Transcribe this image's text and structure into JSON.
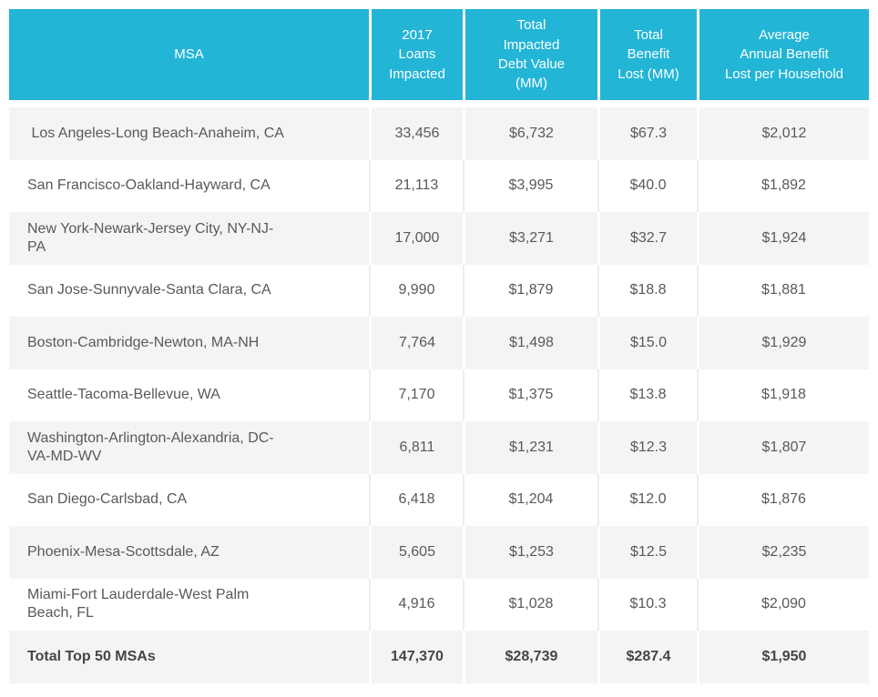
{
  "table": {
    "headers": [
      "MSA",
      "2017\nLoans\nImpacted",
      "Total\nImpacted\nDebt Value\n(MM)",
      "Total\nBenefit\nLost (MM)",
      "Average\nAnnual Benefit\nLost per Household"
    ],
    "rows": [
      {
        "msa": " Los Angeles-Long Beach-Anaheim, CA",
        "loans": "33,456",
        "debt": "$6,732",
        "benefit": "$67.3",
        "avg": "$2,012"
      },
      {
        "msa": "San Francisco-Oakland-Hayward, CA",
        "loans": "21,113",
        "debt": "$3,995",
        "benefit": "$40.0",
        "avg": "$1,892"
      },
      {
        "msa": "New York-Newark-Jersey City, NY-NJ-\nPA",
        "loans": "17,000",
        "debt": "$3,271",
        "benefit": "$32.7",
        "avg": "$1,924"
      },
      {
        "msa": "San Jose-Sunnyvale-Santa Clara, CA",
        "loans": "9,990",
        "debt": "$1,879",
        "benefit": "$18.8",
        "avg": "$1,881"
      },
      {
        "msa": "Boston-Cambridge-Newton, MA-NH",
        "loans": "7,764",
        "debt": "$1,498",
        "benefit": "$15.0",
        "avg": "$1,929"
      },
      {
        "msa": "Seattle-Tacoma-Bellevue, WA",
        "loans": "7,170",
        "debt": "$1,375",
        "benefit": "$13.8",
        "avg": "$1,918"
      },
      {
        "msa": "Washington-Arlington-Alexandria, DC-\nVA-MD-WV",
        "loans": "6,811",
        "debt": "$1,231",
        "benefit": "$12.3",
        "avg": "$1,807"
      },
      {
        "msa": "San Diego-Carlsbad, CA",
        "loans": "6,418",
        "debt": "$1,204",
        "benefit": "$12.0",
        "avg": "$1,876"
      },
      {
        "msa": "Phoenix-Mesa-Scottsdale, AZ",
        "loans": "5,605",
        "debt": "$1,253",
        "benefit": "$12.5",
        "avg": "$2,235"
      },
      {
        "msa": "Miami-Fort Lauderdale-West Palm\nBeach, FL",
        "loans": "4,916",
        "debt": "$1,028",
        "benefit": "$10.3",
        "avg": "$2,090"
      }
    ],
    "total": {
      "msa": "Total Top 50 MSAs",
      "loans": "147,370",
      "debt": "$28,739",
      "benefit": "$287.4",
      "avg": "$1,950"
    },
    "colors": {
      "header_bg": "#23B5D6",
      "header_text": "#FFFFFF",
      "stripe_bg": "#F4F4F4",
      "body_text": "#58595B",
      "total_text": "#454547",
      "white_row_divider": "#EDEDED"
    }
  },
  "chart_data": {
    "type": "table",
    "columns": [
      "MSA",
      "2017 Loans Impacted",
      "Total Impacted Debt Value (MM)",
      "Total Benefit Lost (MM)",
      "Average Annual Benefit Lost per Household"
    ],
    "rows": [
      [
        "Los Angeles-Long Beach-Anaheim, CA",
        33456,
        6732,
        67.3,
        2012
      ],
      [
        "San Francisco-Oakland-Hayward, CA",
        21113,
        3995,
        40.0,
        1892
      ],
      [
        "New York-Newark-Jersey City, NY-NJ-PA",
        17000,
        3271,
        32.7,
        1924
      ],
      [
        "San Jose-Sunnyvale-Santa Clara, CA",
        9990,
        1879,
        18.8,
        1881
      ],
      [
        "Boston-Cambridge-Newton, MA-NH",
        7764,
        1498,
        15.0,
        1929
      ],
      [
        "Seattle-Tacoma-Bellevue, WA",
        7170,
        1375,
        13.8,
        1918
      ],
      [
        "Washington-Arlington-Alexandria, DC-VA-MD-WV",
        6811,
        1231,
        12.3,
        1807
      ],
      [
        "San Diego-Carlsbad, CA",
        6418,
        1204,
        12.0,
        1876
      ],
      [
        "Phoenix-Mesa-Scottsdale, AZ",
        5605,
        1253,
        12.5,
        2235
      ],
      [
        "Miami-Fort Lauderdale-West Palm Beach, FL",
        4916,
        1028,
        10.3,
        2090
      ]
    ],
    "total_row": [
      "Total Top 50 MSAs",
      147370,
      28739,
      287.4,
      1950
    ],
    "units": {
      "loans": "count",
      "debt": "USD millions",
      "benefit": "USD millions",
      "avg": "USD per household per year"
    }
  }
}
